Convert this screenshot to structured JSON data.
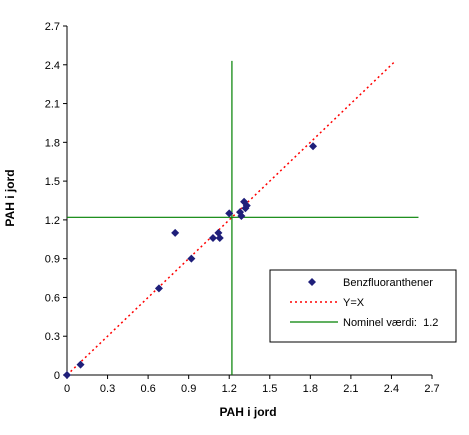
{
  "chart_data": {
    "type": "scatter",
    "xlabel": "PAH i jord",
    "ylabel": "PAH i jord",
    "xlim": [
      0,
      2.7
    ],
    "ylim": [
      0,
      2.7
    ],
    "x_ticks": [
      "0",
      "0.3",
      "0.6",
      "0.9",
      "1.2",
      "1.5",
      "1.8",
      "2.1",
      "2.4",
      "2.7"
    ],
    "y_ticks": [
      "0",
      "0.3",
      "0.6",
      "0.9",
      "1.2",
      "1.5",
      "1.8",
      "2.1",
      "2.4",
      "2.7"
    ],
    "grid": false,
    "legend_position": "right",
    "series": [
      {
        "name": "Benzfluoranthener",
        "kind": "scatter",
        "color": "#1f1f7a",
        "marker": "diamond",
        "points": [
          [
            0,
            0
          ],
          [
            0.1,
            0.08
          ],
          [
            0.68,
            0.67
          ],
          [
            0.8,
            1.1
          ],
          [
            0.92,
            0.9
          ],
          [
            1.08,
            1.06
          ],
          [
            1.12,
            1.1
          ],
          [
            1.13,
            1.06
          ],
          [
            1.2,
            1.25
          ],
          [
            1.28,
            1.26
          ],
          [
            1.29,
            1.23
          ],
          [
            1.31,
            1.34
          ],
          [
            1.32,
            1.29
          ],
          [
            1.33,
            1.31
          ],
          [
            1.82,
            1.77
          ]
        ]
      },
      {
        "name": "Y=X",
        "kind": "line",
        "style": "dotted",
        "color": "#ff0000",
        "points": [
          [
            0,
            0
          ],
          [
            2.43,
            2.43
          ]
        ]
      },
      {
        "name": "Nominel værdi:  1.2",
        "kind": "crosshair",
        "color": "#008000",
        "value": 1.22,
        "vertical_extent": [
          0,
          2.43
        ],
        "horizontal_extent": [
          0,
          2.6
        ]
      }
    ]
  }
}
